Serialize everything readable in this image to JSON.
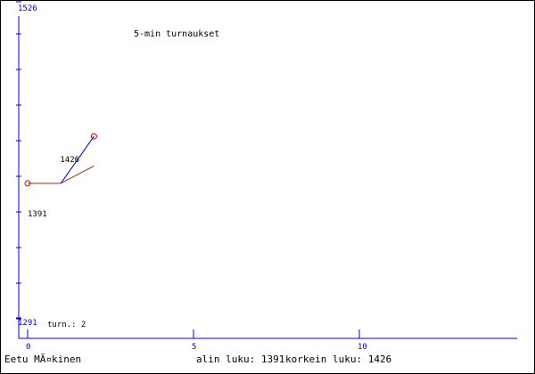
{
  "chart_data": {
    "type": "line",
    "title": "5-min turnaukset",
    "x": [
      0,
      1,
      2
    ],
    "series": [
      {
        "color": "#a03000",
        "values": [
          1391,
          1391,
          1404
        ]
      },
      {
        "color": "#0000cc",
        "values": [
          null,
          1391,
          1426
        ]
      }
    ],
    "points": [
      {
        "x": 0,
        "value": 1391
      },
      {
        "x": 2,
        "value": 1426
      }
    ],
    "point_color": "#c00000",
    "xlim": [
      0,
      15
    ],
    "ylim": [
      1291,
      1526
    ],
    "xticks": [
      0,
      5,
      10
    ],
    "yticks": [
      1291,
      1526
    ],
    "axis_color": "#0000cc",
    "games_label": "turn.: 2"
  },
  "footer": {
    "player": "Eetu MÃ¤kinen",
    "lowest": "alin luku: 1391",
    "highest": "korkein luku: 1426"
  }
}
